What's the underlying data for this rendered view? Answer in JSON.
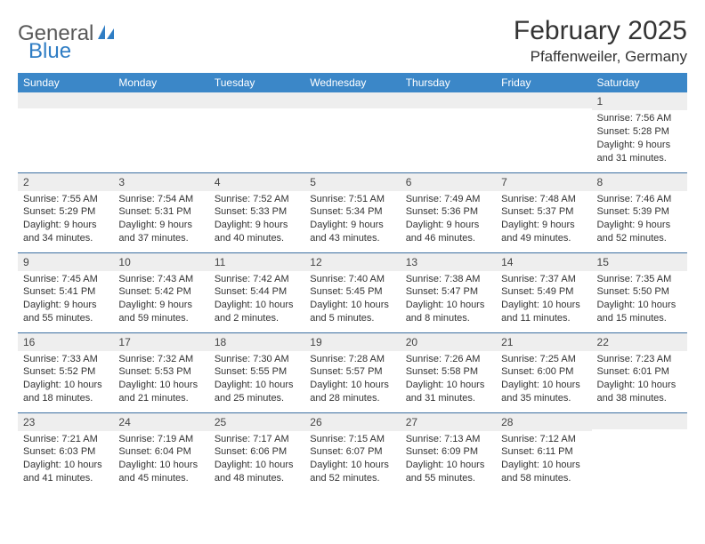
{
  "logo": {
    "word1": "General",
    "word2": "Blue"
  },
  "title": "February 2025",
  "location": "Pfaffenweiler, Germany",
  "colors": {
    "header_bg": "#3b87c8",
    "header_text": "#ffffff",
    "row_divider": "#3b6fa0",
    "daynum_bg": "#eeeeee",
    "text": "#333333",
    "logo_gray": "#585858",
    "logo_blue": "#2f7dc4",
    "page_bg": "#ffffff"
  },
  "typography": {
    "title_fontsize": 30,
    "location_fontsize": 17,
    "day_header_fontsize": 12,
    "daynum_fontsize": 12,
    "body_fontsize": 11
  },
  "day_headers": [
    "Sunday",
    "Monday",
    "Tuesday",
    "Wednesday",
    "Thursday",
    "Friday",
    "Saturday"
  ],
  "weeks": [
    [
      {
        "day": "",
        "lines": [
          "",
          "",
          "",
          ""
        ]
      },
      {
        "day": "",
        "lines": [
          "",
          "",
          "",
          ""
        ]
      },
      {
        "day": "",
        "lines": [
          "",
          "",
          "",
          ""
        ]
      },
      {
        "day": "",
        "lines": [
          "",
          "",
          "",
          ""
        ]
      },
      {
        "day": "",
        "lines": [
          "",
          "",
          "",
          ""
        ]
      },
      {
        "day": "",
        "lines": [
          "",
          "",
          "",
          ""
        ]
      },
      {
        "day": "1",
        "lines": [
          "Sunrise: 7:56 AM",
          "Sunset: 5:28 PM",
          "Daylight: 9 hours",
          "and 31 minutes."
        ]
      }
    ],
    [
      {
        "day": "2",
        "lines": [
          "Sunrise: 7:55 AM",
          "Sunset: 5:29 PM",
          "Daylight: 9 hours",
          "and 34 minutes."
        ]
      },
      {
        "day": "3",
        "lines": [
          "Sunrise: 7:54 AM",
          "Sunset: 5:31 PM",
          "Daylight: 9 hours",
          "and 37 minutes."
        ]
      },
      {
        "day": "4",
        "lines": [
          "Sunrise: 7:52 AM",
          "Sunset: 5:33 PM",
          "Daylight: 9 hours",
          "and 40 minutes."
        ]
      },
      {
        "day": "5",
        "lines": [
          "Sunrise: 7:51 AM",
          "Sunset: 5:34 PM",
          "Daylight: 9 hours",
          "and 43 minutes."
        ]
      },
      {
        "day": "6",
        "lines": [
          "Sunrise: 7:49 AM",
          "Sunset: 5:36 PM",
          "Daylight: 9 hours",
          "and 46 minutes."
        ]
      },
      {
        "day": "7",
        "lines": [
          "Sunrise: 7:48 AM",
          "Sunset: 5:37 PM",
          "Daylight: 9 hours",
          "and 49 minutes."
        ]
      },
      {
        "day": "8",
        "lines": [
          "Sunrise: 7:46 AM",
          "Sunset: 5:39 PM",
          "Daylight: 9 hours",
          "and 52 minutes."
        ]
      }
    ],
    [
      {
        "day": "9",
        "lines": [
          "Sunrise: 7:45 AM",
          "Sunset: 5:41 PM",
          "Daylight: 9 hours",
          "and 55 minutes."
        ]
      },
      {
        "day": "10",
        "lines": [
          "Sunrise: 7:43 AM",
          "Sunset: 5:42 PM",
          "Daylight: 9 hours",
          "and 59 minutes."
        ]
      },
      {
        "day": "11",
        "lines": [
          "Sunrise: 7:42 AM",
          "Sunset: 5:44 PM",
          "Daylight: 10 hours",
          "and 2 minutes."
        ]
      },
      {
        "day": "12",
        "lines": [
          "Sunrise: 7:40 AM",
          "Sunset: 5:45 PM",
          "Daylight: 10 hours",
          "and 5 minutes."
        ]
      },
      {
        "day": "13",
        "lines": [
          "Sunrise: 7:38 AM",
          "Sunset: 5:47 PM",
          "Daylight: 10 hours",
          "and 8 minutes."
        ]
      },
      {
        "day": "14",
        "lines": [
          "Sunrise: 7:37 AM",
          "Sunset: 5:49 PM",
          "Daylight: 10 hours",
          "and 11 minutes."
        ]
      },
      {
        "day": "15",
        "lines": [
          "Sunrise: 7:35 AM",
          "Sunset: 5:50 PM",
          "Daylight: 10 hours",
          "and 15 minutes."
        ]
      }
    ],
    [
      {
        "day": "16",
        "lines": [
          "Sunrise: 7:33 AM",
          "Sunset: 5:52 PM",
          "Daylight: 10 hours",
          "and 18 minutes."
        ]
      },
      {
        "day": "17",
        "lines": [
          "Sunrise: 7:32 AM",
          "Sunset: 5:53 PM",
          "Daylight: 10 hours",
          "and 21 minutes."
        ]
      },
      {
        "day": "18",
        "lines": [
          "Sunrise: 7:30 AM",
          "Sunset: 5:55 PM",
          "Daylight: 10 hours",
          "and 25 minutes."
        ]
      },
      {
        "day": "19",
        "lines": [
          "Sunrise: 7:28 AM",
          "Sunset: 5:57 PM",
          "Daylight: 10 hours",
          "and 28 minutes."
        ]
      },
      {
        "day": "20",
        "lines": [
          "Sunrise: 7:26 AM",
          "Sunset: 5:58 PM",
          "Daylight: 10 hours",
          "and 31 minutes."
        ]
      },
      {
        "day": "21",
        "lines": [
          "Sunrise: 7:25 AM",
          "Sunset: 6:00 PM",
          "Daylight: 10 hours",
          "and 35 minutes."
        ]
      },
      {
        "day": "22",
        "lines": [
          "Sunrise: 7:23 AM",
          "Sunset: 6:01 PM",
          "Daylight: 10 hours",
          "and 38 minutes."
        ]
      }
    ],
    [
      {
        "day": "23",
        "lines": [
          "Sunrise: 7:21 AM",
          "Sunset: 6:03 PM",
          "Daylight: 10 hours",
          "and 41 minutes."
        ]
      },
      {
        "day": "24",
        "lines": [
          "Sunrise: 7:19 AM",
          "Sunset: 6:04 PM",
          "Daylight: 10 hours",
          "and 45 minutes."
        ]
      },
      {
        "day": "25",
        "lines": [
          "Sunrise: 7:17 AM",
          "Sunset: 6:06 PM",
          "Daylight: 10 hours",
          "and 48 minutes."
        ]
      },
      {
        "day": "26",
        "lines": [
          "Sunrise: 7:15 AM",
          "Sunset: 6:07 PM",
          "Daylight: 10 hours",
          "and 52 minutes."
        ]
      },
      {
        "day": "27",
        "lines": [
          "Sunrise: 7:13 AM",
          "Sunset: 6:09 PM",
          "Daylight: 10 hours",
          "and 55 minutes."
        ]
      },
      {
        "day": "28",
        "lines": [
          "Sunrise: 7:12 AM",
          "Sunset: 6:11 PM",
          "Daylight: 10 hours",
          "and 58 minutes."
        ]
      },
      {
        "day": "",
        "lines": [
          "",
          "",
          "",
          ""
        ]
      }
    ]
  ]
}
